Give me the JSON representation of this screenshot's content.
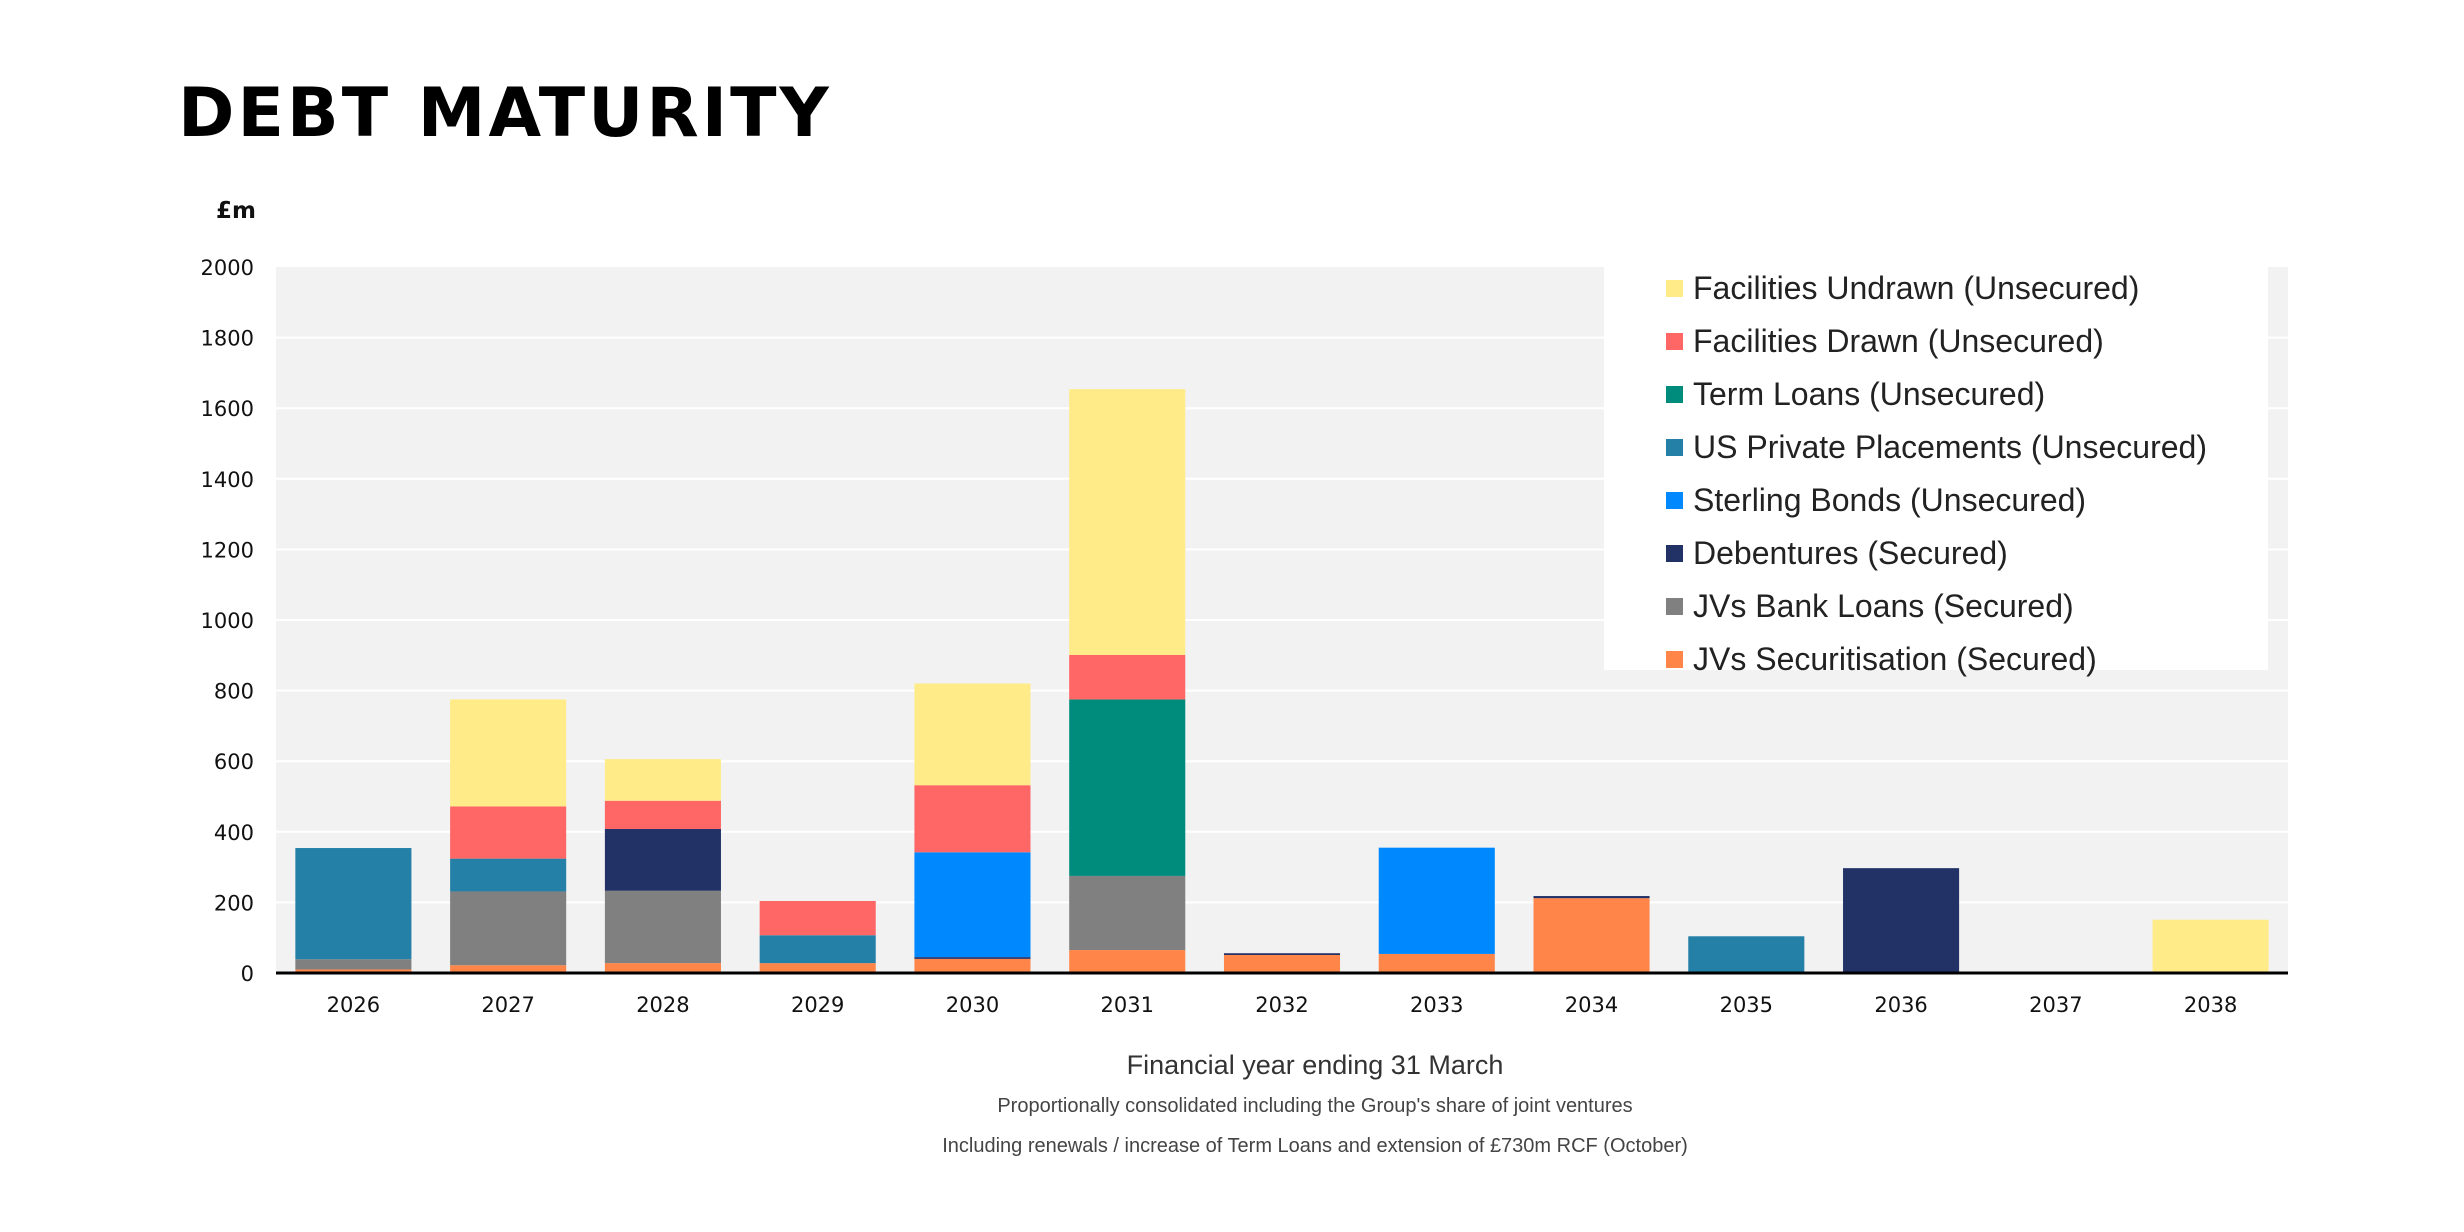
{
  "page": {
    "title": "DEBT MATURITY",
    "unit_label": "£m",
    "xlabel": "Financial year ending 31 March",
    "notes": [
      "Proportionally consolidated including the Group's share of joint ventures",
      "Including renewals / increase of Term Loans and extension of £730m RCF (October)"
    ]
  },
  "chart_data": {
    "type": "bar",
    "stacked": true,
    "title": "DEBT MATURITY",
    "xlabel": "Financial year ending 31 March",
    "ylabel": "£m",
    "ylim": [
      0,
      2000
    ],
    "yticks": [
      0,
      200,
      400,
      600,
      800,
      1000,
      1200,
      1400,
      1600,
      1800,
      2000
    ],
    "grid": true,
    "legend_position": "top-right",
    "categories": [
      "2026",
      "2027",
      "2028",
      "2029",
      "2030",
      "2031",
      "2032",
      "2033",
      "2034",
      "2035",
      "2036",
      "2037",
      "2038"
    ],
    "series": [
      {
        "name": "JVs Securitisation (Secured)",
        "color": "#FF8548",
        "values": [
          10,
          22,
          28,
          28,
          40,
          65,
          51,
          54,
          212,
          0,
          0,
          0,
          0
        ]
      },
      {
        "name": "JVs Bank Loans (Secured)",
        "color": "#808080",
        "values": [
          29,
          209,
          205,
          0,
          0,
          210,
          0,
          0,
          0,
          0,
          0,
          0,
          0
        ]
      },
      {
        "name": "Debentures (Secured)",
        "color": "#223166",
        "values": [
          0,
          0,
          175,
          0,
          5,
          0,
          5,
          0,
          6,
          0,
          297,
          0,
          0
        ]
      },
      {
        "name": "Sterling Bonds (Unsecured)",
        "color": "#0088FF",
        "values": [
          0,
          0,
          0,
          0,
          297,
          0,
          0,
          301,
          0,
          0,
          0,
          0,
          0
        ]
      },
      {
        "name": "US Private Placements (Unsecured)",
        "color": "#2480A6",
        "values": [
          315,
          93,
          0,
          79,
          0,
          0,
          0,
          0,
          0,
          104,
          0,
          0,
          0
        ]
      },
      {
        "name": "Term Loans (Unsecured)",
        "color": "#008C7D",
        "values": [
          0,
          0,
          0,
          0,
          0,
          500,
          0,
          0,
          0,
          0,
          0,
          0,
          0
        ]
      },
      {
        "name": "Facilities Drawn (Unsecured)",
        "color": "#FF6666",
        "values": [
          0,
          148,
          80,
          97,
          190,
          126,
          0,
          0,
          0,
          0,
          0,
          0,
          0
        ]
      },
      {
        "name": "Facilities Undrawn (Unsecured)",
        "color": "#FFEB88",
        "values": [
          0,
          303,
          118,
          0,
          288,
          753,
          0,
          0,
          0,
          0,
          0,
          0,
          151
        ]
      }
    ],
    "legend_order": [
      7,
      6,
      5,
      4,
      3,
      2,
      1,
      0
    ]
  },
  "colors": {
    "plot_background": "#F2F2F2",
    "gridline": "#FFFFFF",
    "axis": "#000000"
  }
}
